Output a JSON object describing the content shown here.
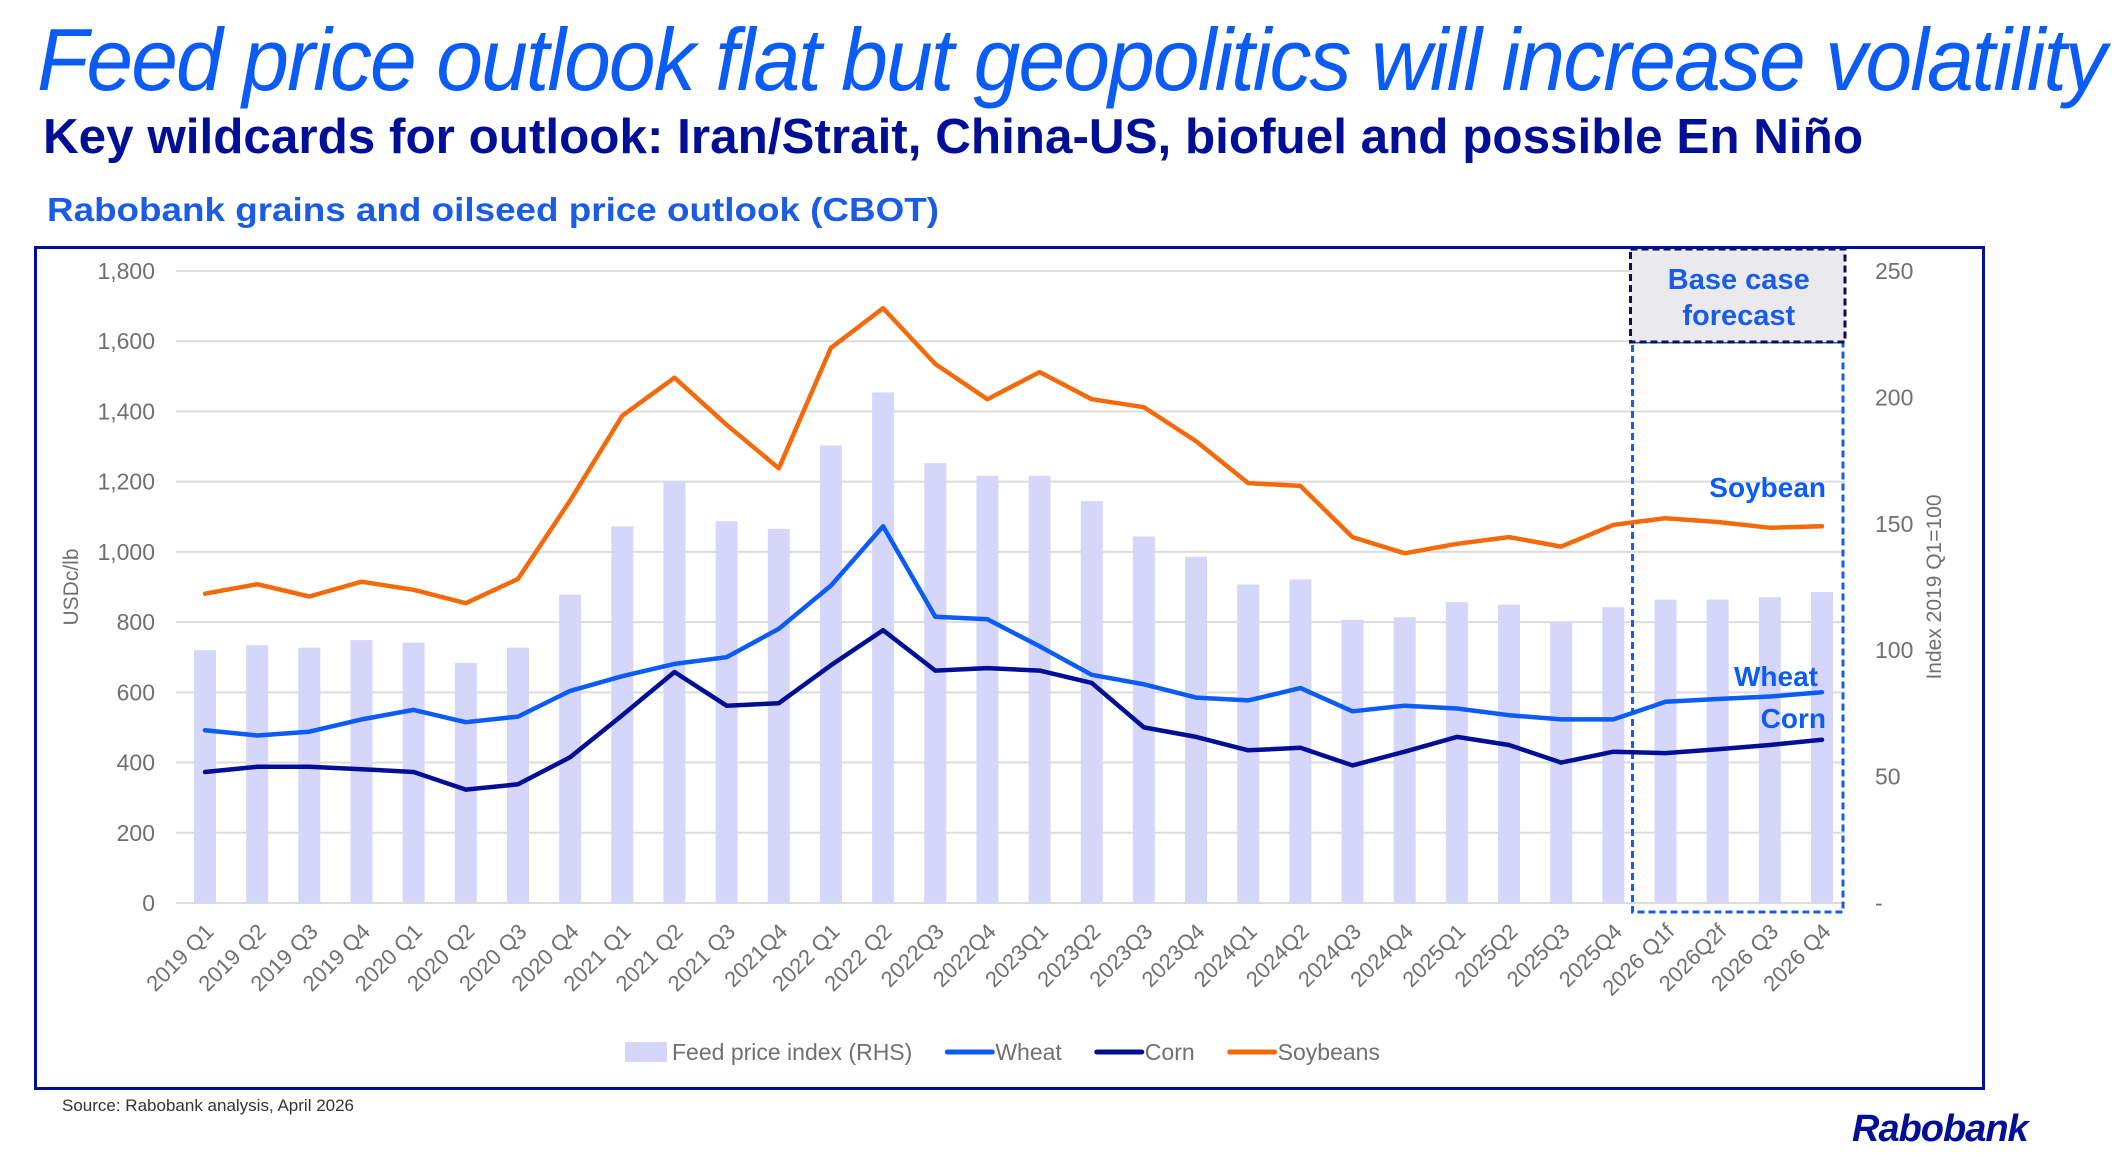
{
  "header": {
    "title": "Feed price outlook flat but geopolitics will increase volatility",
    "subtitle": "Key wildcards for outlook: Iran/Strait, China-US, biofuel and possible En Niño",
    "chart_title": "Rabobank grains and oilseed price outlook (CBOT)"
  },
  "footer": {
    "source": "Source: Rabobank analysis, April 2026",
    "logo": "Rabobank"
  },
  "colors": {
    "title": "#0a5cf5",
    "subtitle": "#000f96",
    "frame": "#000f96",
    "bars": "#d6d6fa",
    "wheat": "#0a5cf5",
    "corn": "#000f96",
    "soybeans": "#f46a0a",
    "grid": "#dcdcdc",
    "axis_text": "#707070",
    "forecast_header_fill": "#e9e9ee",
    "forecast_border": "#1a5ce6",
    "forecast_header_border": "#0a0f50"
  },
  "chart_data": {
    "type": "bar+line",
    "title": "Rabobank grains and oilseed price outlook (CBOT)",
    "categories": [
      "2019 Q1",
      "2019 Q2",
      "2019 Q3",
      "2019 Q4",
      "2020 Q1",
      "2020 Q2",
      "2020 Q3",
      "2020 Q4",
      "2021 Q1",
      "2021 Q2",
      "2021 Q3",
      "2021Q4",
      "2022 Q1",
      "2022 Q2",
      "2022Q3",
      "2022Q4",
      "2023Q1",
      "2023Q2",
      "2023Q3",
      "2023Q4",
      "2024Q1",
      "2024Q2",
      "2024Q3",
      "2024Q4",
      "2025Q1",
      "2025Q2",
      "2025Q3",
      "2025Q4",
      "2026 Q1f",
      "2026Q2f",
      "2026 Q3",
      "2026 Q4"
    ],
    "ylabel": "USDc/lb",
    "y2label": "Index 2019 Q1=100",
    "ylim": [
      0,
      1800
    ],
    "y2lim": [
      0,
      250
    ],
    "yticks": [
      "0",
      "200",
      "400",
      "600",
      "800",
      "1,000",
      "1,200",
      "1,400",
      "1,600",
      "1,800"
    ],
    "y2ticks": [
      "-",
      "50",
      "100",
      "150",
      "200",
      "250"
    ],
    "grid": true,
    "legend_position": "bottom",
    "series": [
      {
        "name": "Feed price index (RHS)",
        "type": "bar",
        "axis": "right",
        "color_key": "bars",
        "values": [
          100,
          102,
          101,
          104,
          103,
          95,
          101,
          122,
          149,
          167,
          151,
          148,
          181,
          202,
          174,
          169,
          169,
          159,
          145,
          137,
          126,
          128,
          112,
          113,
          119,
          118,
          111,
          117,
          120,
          120,
          121,
          123
        ]
      },
      {
        "name": "Wheat",
        "type": "line",
        "axis": "left",
        "color_key": "wheat",
        "values": [
          492,
          477,
          488,
          523,
          550,
          515,
          531,
          604,
          646,
          681,
          700,
          781,
          904,
          1073,
          815,
          808,
          731,
          650,
          623,
          585,
          577,
          612,
          546,
          562,
          554,
          535,
          523,
          523,
          573,
          581,
          588,
          600
        ]
      },
      {
        "name": "Corn",
        "type": "line",
        "axis": "left",
        "color_key": "corn",
        "values": [
          373,
          388,
          388,
          381,
          373,
          323,
          338,
          415,
          535,
          658,
          562,
          569,
          677,
          777,
          662,
          669,
          662,
          627,
          500,
          473,
          435,
          442,
          392,
          431,
          473,
          450,
          400,
          431,
          427,
          438,
          450,
          465
        ]
      },
      {
        "name": "Soybeans",
        "type": "line",
        "axis": "left",
        "color_key": "soybeans",
        "values": [
          881,
          908,
          873,
          915,
          892,
          854,
          923,
          1146,
          1388,
          1496,
          1362,
          1238,
          1581,
          1694,
          1535,
          1435,
          1512,
          1435,
          1412,
          1315,
          1196,
          1188,
          1042,
          996,
          1023,
          1042,
          1015,
          1077,
          1096,
          1085,
          1069,
          1073
        ]
      }
    ],
    "annotations": {
      "forecast_box": {
        "label_line1": "Base case",
        "label_line2": "forecast",
        "from_category": "2026 Q1f",
        "to_category": "2026 Q4"
      },
      "series_labels": {
        "soybean": "Soybean",
        "wheat": "Wheat",
        "corn": "Corn"
      }
    }
  }
}
